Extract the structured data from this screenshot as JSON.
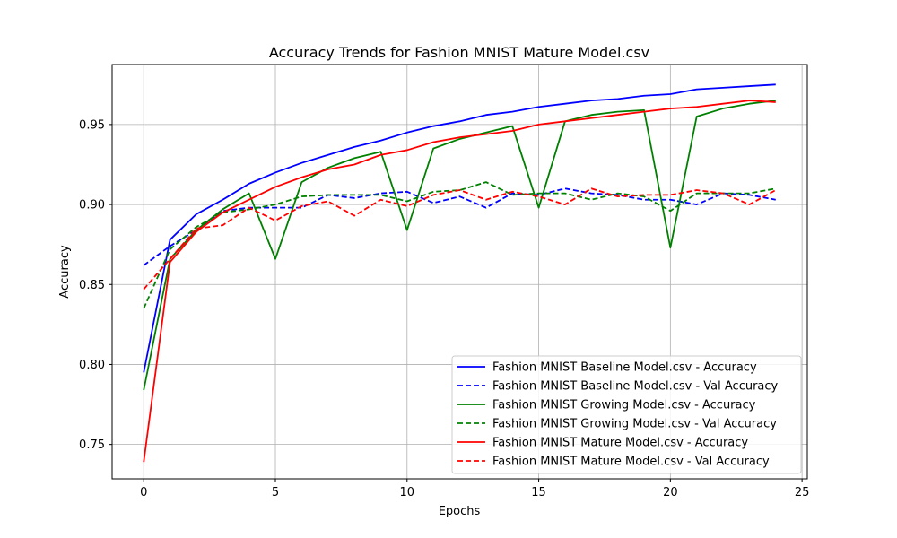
{
  "chart_data": {
    "type": "line",
    "title": "Accuracy Trends for Fashion MNIST Mature Model.csv",
    "xlabel": "Epochs",
    "ylabel": "Accuracy",
    "xlim": [
      -1.2,
      25.2
    ],
    "ylim": [
      0.7285,
      0.9875
    ],
    "x_ticks": [
      0,
      5,
      10,
      15,
      20,
      25
    ],
    "y_ticks": [
      0.75,
      0.8,
      0.85,
      0.9,
      0.95
    ],
    "y_tick_labels": [
      "0.75",
      "0.80",
      "0.85",
      "0.90",
      "0.95"
    ],
    "grid": true,
    "legend_position": "lower-right",
    "x": [
      0,
      1,
      2,
      3,
      4,
      5,
      6,
      7,
      8,
      9,
      10,
      11,
      12,
      13,
      14,
      15,
      16,
      17,
      18,
      19,
      20,
      21,
      22,
      23,
      24
    ],
    "series": [
      {
        "name": "Fashion MNIST Baseline Model.csv - Accuracy",
        "color": "#0000ff",
        "dash": "solid",
        "values": [
          0.795,
          0.878,
          0.894,
          0.903,
          0.913,
          0.92,
          0.926,
          0.931,
          0.936,
          0.94,
          0.945,
          0.949,
          0.952,
          0.956,
          0.958,
          0.961,
          0.963,
          0.965,
          0.966,
          0.968,
          0.969,
          0.972,
          0.973,
          0.974,
          0.975
        ]
      },
      {
        "name": "Fashion MNIST Baseline Model.csv - Val Accuracy",
        "color": "#0000ff",
        "dash": "dashed",
        "values": [
          0.862,
          0.874,
          0.884,
          0.896,
          0.898,
          0.898,
          0.898,
          0.906,
          0.904,
          0.907,
          0.908,
          0.901,
          0.905,
          0.898,
          0.907,
          0.906,
          0.91,
          0.907,
          0.906,
          0.903,
          0.903,
          0.9,
          0.907,
          0.906,
          0.903
        ]
      },
      {
        "name": "Fashion MNIST Growing Model.csv - Accuracy",
        "color": "#008000",
        "dash": "solid",
        "values": [
          0.784,
          0.866,
          0.884,
          0.897,
          0.907,
          0.866,
          0.914,
          0.923,
          0.929,
          0.933,
          0.884,
          0.935,
          0.941,
          0.945,
          0.949,
          0.898,
          0.952,
          0.956,
          0.958,
          0.959,
          0.873,
          0.955,
          0.96,
          0.963,
          0.965
        ]
      },
      {
        "name": "Fashion MNIST Growing Model.csv - Val Accuracy",
        "color": "#008000",
        "dash": "dashed",
        "values": [
          0.835,
          0.872,
          0.886,
          0.895,
          0.897,
          0.9,
          0.905,
          0.906,
          0.906,
          0.906,
          0.902,
          0.908,
          0.909,
          0.914,
          0.906,
          0.907,
          0.907,
          0.903,
          0.907,
          0.905,
          0.896,
          0.907,
          0.907,
          0.907,
          0.91
        ]
      },
      {
        "name": "Fashion MNIST Mature Model.csv - Accuracy",
        "color": "#ff0000",
        "dash": "solid",
        "values": [
          0.739,
          0.864,
          0.883,
          0.895,
          0.903,
          0.911,
          0.917,
          0.922,
          0.925,
          0.931,
          0.934,
          0.939,
          0.942,
          0.944,
          0.946,
          0.95,
          0.952,
          0.954,
          0.956,
          0.958,
          0.96,
          0.961,
          0.963,
          0.965,
          0.964
        ]
      },
      {
        "name": "Fashion MNIST Mature Model.csv - Val Accuracy",
        "color": "#ff0000",
        "dash": "dashed",
        "values": [
          0.847,
          0.866,
          0.885,
          0.887,
          0.898,
          0.89,
          0.899,
          0.902,
          0.893,
          0.903,
          0.899,
          0.906,
          0.909,
          0.903,
          0.908,
          0.905,
          0.9,
          0.91,
          0.905,
          0.906,
          0.906,
          0.909,
          0.907,
          0.9,
          0.909
        ]
      }
    ]
  }
}
